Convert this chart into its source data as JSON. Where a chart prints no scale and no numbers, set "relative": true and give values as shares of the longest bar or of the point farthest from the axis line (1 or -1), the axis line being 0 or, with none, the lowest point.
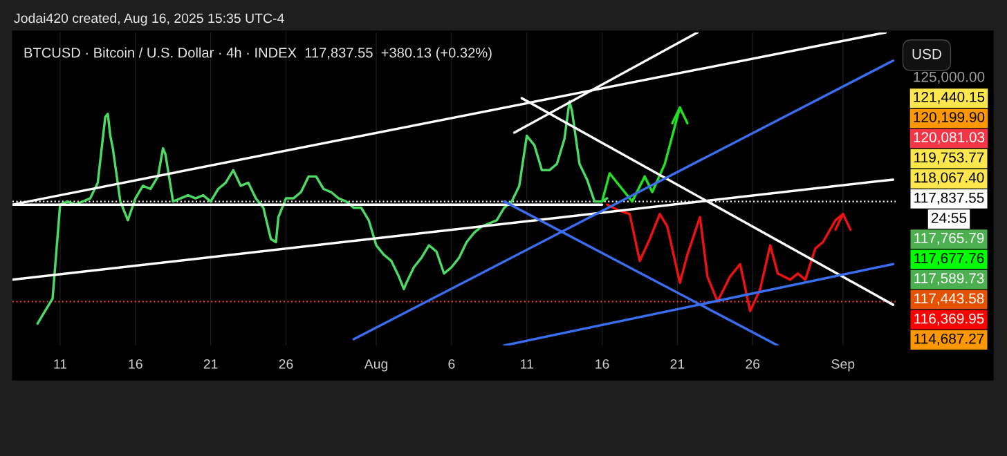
{
  "chart_data": {
    "type": "line",
    "relative": true,
    "title": "BTCUSD · Bitcoin / U.S. Dollar · 4h · INDEX  117,837.55  +380.13 (+0.32%)",
    "annotations": [
      "Jodai420 created, Aug 16, 2025 15:35 UTC-4",
      "USD",
      "125,000.00",
      "121,440.15",
      "120,199.90",
      "120,081.03",
      "119,753.77",
      "118,067.40",
      "117,837.55",
      "24:55",
      "117,765.79",
      "117,677.76",
      "117,589.73",
      "117,443.58",
      "116,369.95",
      "114,687.27"
    ],
    "xlim": [
      "2025-07-07T20:00",
      "2025-09-04T12:00"
    ],
    "xticks": [
      {
        "value": "2025-07-11",
        "label": "11"
      },
      {
        "value": "2025-07-16",
        "label": "16"
      },
      {
        "value": "2025-07-21",
        "label": "21"
      },
      {
        "value": "2025-07-26",
        "label": "26"
      },
      {
        "value": "2025-08-01",
        "label": "Aug"
      },
      {
        "value": "2025-08-06",
        "label": "6"
      },
      {
        "value": "2025-08-11",
        "label": "11"
      },
      {
        "value": "2025-08-16",
        "label": "16"
      },
      {
        "value": "2025-08-21",
        "label": "21"
      },
      {
        "value": "2025-08-26",
        "label": "26"
      },
      {
        "value": "2025-09-01",
        "label": "Sep"
      }
    ],
    "grid": "x",
    "legend": false,
    "ref_lines": [
      {
        "axis": "y",
        "value": 0.14,
        "color": "#ff3b3b",
        "line_style": "dotted"
      },
      {
        "axis": "y",
        "value": 0.46,
        "color": "#ffffff",
        "line_style": "dotted"
      }
    ],
    "series": [
      {
        "color": "#4cd964",
        "x": [
          "2025-07-09T12:00",
          "2025-07-10T00:00",
          "2025-07-10T12:00",
          "2025-07-11T00:00",
          "2025-07-11T12:00",
          "2025-07-12T00:00",
          "2025-07-12T12:00",
          "2025-07-13T00:00",
          "2025-07-13T12:00",
          "2025-07-14T00:00",
          "2025-07-14T04:00",
          "2025-07-14T08:00",
          "2025-07-14T12:00",
          "2025-07-15T00:00",
          "2025-07-15T12:00",
          "2025-07-16T00:00",
          "2025-07-16T12:00",
          "2025-07-17T00:00",
          "2025-07-17T12:00",
          "2025-07-17T20:00",
          "2025-07-18T00:00",
          "2025-07-18T12:00",
          "2025-07-19T00:00",
          "2025-07-19T12:00",
          "2025-07-20T00:00",
          "2025-07-20T12:00",
          "2025-07-21T00:00",
          "2025-07-21T12:00",
          "2025-07-22T00:00",
          "2025-07-22T12:00",
          "2025-07-23T00:00",
          "2025-07-23T12:00",
          "2025-07-24T00:00",
          "2025-07-24T12:00",
          "2025-07-25T00:00",
          "2025-07-25T08:00",
          "2025-07-25T12:00",
          "2025-07-26T00:00",
          "2025-07-26T12:00",
          "2025-07-27T00:00",
          "2025-07-27T12:00",
          "2025-07-28T00:00",
          "2025-07-28T12:00",
          "2025-07-29T00:00",
          "2025-07-29T12:00",
          "2025-07-30T00:00",
          "2025-07-30T12:00",
          "2025-07-31T00:00",
          "2025-07-31T12:00",
          "2025-08-01T00:00",
          "2025-08-01T12:00",
          "2025-08-02T00:00",
          "2025-08-02T12:00",
          "2025-08-02T20:00",
          "2025-08-03T00:00",
          "2025-08-03T12:00",
          "2025-08-04T00:00",
          "2025-08-04T12:00",
          "2025-08-05T00:00",
          "2025-08-05T12:00",
          "2025-08-06T00:00",
          "2025-08-06T12:00",
          "2025-08-07T00:00",
          "2025-08-07T12:00",
          "2025-08-08T00:00",
          "2025-08-08T12:00",
          "2025-08-09T00:00",
          "2025-08-09T12:00",
          "2025-08-10T00:00",
          "2025-08-10T12:00",
          "2025-08-11T00:00",
          "2025-08-11T12:00",
          "2025-08-12T00:00",
          "2025-08-12T12:00",
          "2025-08-13T00:00",
          "2025-08-13T12:00",
          "2025-08-13T20:00",
          "2025-08-14T00:00",
          "2025-08-14T12:00",
          "2025-08-15T00:00",
          "2025-08-15T12:00",
          "2025-08-16T00:00",
          "2025-08-16T08:00"
        ],
        "values": [
          0.07,
          0.11,
          0.15,
          0.45,
          0.46,
          0.45,
          0.46,
          0.47,
          0.52,
          0.73,
          0.74,
          0.67,
          0.63,
          0.46,
          0.4,
          0.47,
          0.51,
          0.5,
          0.54,
          0.63,
          0.61,
          0.46,
          0.47,
          0.48,
          0.47,
          0.48,
          0.46,
          0.5,
          0.52,
          0.56,
          0.51,
          0.52,
          0.47,
          0.44,
          0.34,
          0.33,
          0.41,
          0.47,
          0.47,
          0.49,
          0.54,
          0.54,
          0.5,
          0.49,
          0.47,
          0.46,
          0.44,
          0.44,
          0.4,
          0.32,
          0.29,
          0.27,
          0.22,
          0.18,
          0.2,
          0.25,
          0.28,
          0.32,
          0.3,
          0.23,
          0.25,
          0.28,
          0.33,
          0.36,
          0.38,
          0.39,
          0.4,
          0.44,
          0.46,
          0.51,
          0.67,
          0.64,
          0.56,
          0.56,
          0.58,
          0.66,
          0.78,
          0.75,
          0.58,
          0.53,
          0.46,
          0.46,
          0.47
        ]
      },
      {
        "color": "#22e022",
        "x": [
          "2025-08-16T00:00",
          "2025-08-16T12:00",
          "2025-08-17T04:00",
          "2025-08-18T00:00",
          "2025-08-18T20:00",
          "2025-08-19T08:00",
          "2025-08-20T04:00",
          "2025-08-20T20:00",
          "2025-08-21T04:00"
        ],
        "values": [
          0.46,
          0.55,
          0.51,
          0.46,
          0.54,
          0.49,
          0.58,
          0.7,
          0.76
        ]
      },
      {
        "color": "#ee1111",
        "x": [
          "2025-08-16T08:00",
          "2025-08-17T04:00",
          "2025-08-17T20:00",
          "2025-08-18T12:00",
          "2025-08-19T04:00",
          "2025-08-19T20:00",
          "2025-08-20T08:00",
          "2025-08-21T04:00",
          "2025-08-21T16:00",
          "2025-08-22T12:00",
          "2025-08-23T00:00",
          "2025-08-23T16:00",
          "2025-08-24T12:00",
          "2025-08-25T04:00",
          "2025-08-25T20:00",
          "2025-08-26T12:00",
          "2025-08-27T04:00",
          "2025-08-27T16:00",
          "2025-08-28T12:00",
          "2025-08-29T00:00",
          "2025-08-29T12:00",
          "2025-08-30T04:00",
          "2025-08-30T16:00",
          "2025-08-31T12:00",
          "2025-09-01T00:00"
        ],
        "values": [
          0.45,
          0.43,
          0.42,
          0.27,
          0.34,
          0.42,
          0.38,
          0.2,
          0.29,
          0.41,
          0.22,
          0.14,
          0.22,
          0.26,
          0.11,
          0.18,
          0.32,
          0.23,
          0.21,
          0.23,
          0.21,
          0.31,
          0.33,
          0.4,
          0.42
        ]
      },
      {
        "color": "#ffffff",
        "x": [
          "2025-07-07T20:00",
          "2025-09-03T20:00"
        ],
        "values": [
          0.45,
          1.0
        ]
      },
      {
        "color": "#ffffff",
        "x": [
          "2025-08-10T04:00",
          "2025-08-22T08:00"
        ],
        "values": [
          0.68,
          1.0
        ]
      },
      {
        "color": "#ffffff",
        "x": [
          "2025-07-07T20:00",
          "2025-09-04T08:00"
        ],
        "values": [
          0.21,
          0.53
        ]
      },
      {
        "color": "#ffffff",
        "x": [
          "2025-07-07T20:00",
          "2025-08-16T00:00"
        ],
        "values": [
          0.45,
          0.45
        ]
      },
      {
        "color": "#ffffff",
        "x": [
          "2025-08-10T16:00",
          "2025-09-04T08:00"
        ],
        "values": [
          0.79,
          0.13
        ]
      },
      {
        "color": "#3a6ef0",
        "x": [
          "2025-07-30T12:00",
          "2025-09-04T08:00"
        ],
        "values": [
          0.02,
          0.91
        ]
      },
      {
        "color": "#3a6ef0",
        "x": [
          "2025-08-09T12:00",
          "2025-08-27T16:00"
        ],
        "values": [
          0.46,
          0.0
        ]
      },
      {
        "color": "#3a6ef0",
        "x": [
          "2025-08-09T12:00",
          "2025-09-04T08:00"
        ],
        "values": [
          0.0,
          0.26
        ]
      }
    ]
  }
}
